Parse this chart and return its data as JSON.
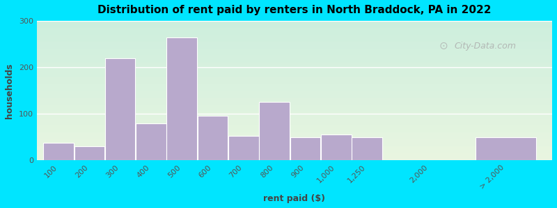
{
  "title": "Distribution of rent paid by renters in North Braddock, PA in 2022",
  "xlabel": "rent paid ($)",
  "ylabel": "households",
  "bar_color": "#b8a9cc",
  "background_outer": "#00e5ff",
  "ylim": [
    0,
    300
  ],
  "yticks": [
    0,
    100,
    200,
    300
  ],
  "categories": [
    "100",
    "200",
    "300",
    "400",
    "500",
    "600",
    "700",
    "800",
    "900",
    "1,000",
    "1,250",
    "2,000",
    "> 2,000"
  ],
  "values": [
    38,
    30,
    220,
    80,
    265,
    95,
    52,
    125,
    50,
    55,
    50,
    0,
    50
  ],
  "bar_positions": [
    0,
    1,
    2,
    3,
    4,
    5,
    6,
    7,
    8,
    9,
    10,
    12,
    14
  ],
  "bar_widths": [
    1,
    1,
    1,
    1,
    1,
    1,
    1,
    1,
    1,
    1,
    1,
    1,
    2
  ],
  "watermark": "City-Data.com",
  "grad_top": "#e8f5e0",
  "grad_bottom": "#cceedd",
  "xlim": [
    -0.2,
    16.5
  ]
}
